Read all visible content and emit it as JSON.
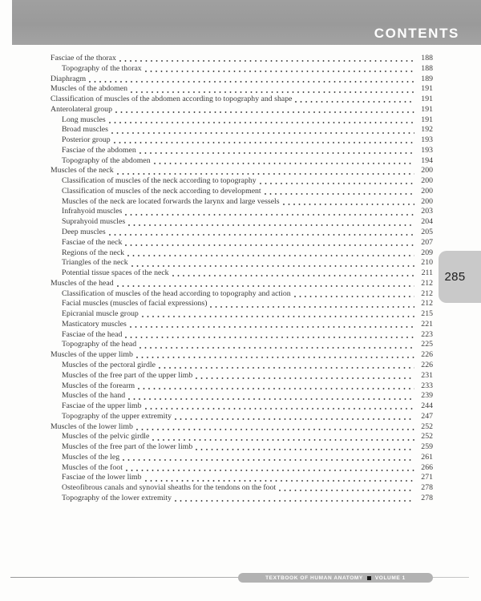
{
  "header": {
    "title": "CONTENTS"
  },
  "page_tab": {
    "number": "285"
  },
  "footer": {
    "book_title": "TEXTBOOK OF HUMAN ANATOMY",
    "separator_icon": "black-square",
    "volume": "VOLUME 1"
  },
  "toc": {
    "entries": [
      {
        "label": "Fasciae of the thorax",
        "page": "188",
        "level": 0
      },
      {
        "label": "Topography of the thorax",
        "page": "188",
        "level": 1
      },
      {
        "label": "Diaphragm",
        "page": "189",
        "level": 0
      },
      {
        "label": "Muscles of the abdomen",
        "page": "191",
        "level": 0
      },
      {
        "label": "Classification of muscles of the abdomen according to topography and shape",
        "page": "191",
        "level": 0
      },
      {
        "label": "Anterolateral group",
        "page": "191",
        "level": 0
      },
      {
        "label": "Long muscles",
        "page": "191",
        "level": 1
      },
      {
        "label": "Broad muscles",
        "page": "192",
        "level": 1
      },
      {
        "label": "Posterior group",
        "page": "193",
        "level": 1
      },
      {
        "label": "Fasciae of the abdomen",
        "page": "193",
        "level": 1
      },
      {
        "label": "Topography of the abdomen",
        "page": "194",
        "level": 1
      },
      {
        "label": "Muscles of the neck",
        "page": "200",
        "level": 0
      },
      {
        "label": "Classification of muscles of the neck according to topography",
        "page": "200",
        "level": 1
      },
      {
        "label": "Classification of muscles of the neck according to development",
        "page": "200",
        "level": 1
      },
      {
        "label": "Muscles of the neck are located forwards the larynx and large vessels",
        "page": "200",
        "level": 1
      },
      {
        "label": "Infrahyoid muscles",
        "page": "203",
        "level": 1
      },
      {
        "label": "Suprahyoid muscles",
        "page": "204",
        "level": 1
      },
      {
        "label": "Deep muscles",
        "page": "205",
        "level": 1
      },
      {
        "label": "Fasciae of the neck",
        "page": "207",
        "level": 1
      },
      {
        "label": "Regions of the neck",
        "page": "209",
        "level": 1
      },
      {
        "label": "Triangles of the neck",
        "page": "210",
        "level": 1
      },
      {
        "label": "Potential tissue spaces of the neck",
        "page": "211",
        "level": 1
      },
      {
        "label": "Muscles of the head",
        "page": "212",
        "level": 0
      },
      {
        "label": "Classification of muscles of the head according to topography and action",
        "page": "212",
        "level": 1
      },
      {
        "label": "Facial muscles (muscles of facial expressions)",
        "page": "212",
        "level": 1
      },
      {
        "label": "Epicranial muscle group",
        "page": "215",
        "level": 1
      },
      {
        "label": "Masticatory muscles",
        "page": "221",
        "level": 1
      },
      {
        "label": "Fasciae of the head",
        "page": "223",
        "level": 1
      },
      {
        "label": "Topography of the head",
        "page": "225",
        "level": 1
      },
      {
        "label": "Muscles of the upper limb",
        "page": "226",
        "level": 0
      },
      {
        "label": "Muscles of the pectoral girdle",
        "page": "226",
        "level": 1
      },
      {
        "label": "Muscles of the free part of the upper limb",
        "page": "231",
        "level": 1
      },
      {
        "label": "Muscles of the forearm",
        "page": "233",
        "level": 1
      },
      {
        "label": "Muscles of the hand",
        "page": "239",
        "level": 1
      },
      {
        "label": "Fasciae of the upper limb",
        "page": "244",
        "level": 1
      },
      {
        "label": "Topography of the upper extremity",
        "page": "247",
        "level": 1
      },
      {
        "label": "Muscles of the lower limb",
        "page": "252",
        "level": 0
      },
      {
        "label": "Muscles of the pelvic girdle",
        "page": "252",
        "level": 1
      },
      {
        "label": "Muscles of the free part of the lower limb",
        "page": "259",
        "level": 1
      },
      {
        "label": "Muscles of the leg",
        "page": "261",
        "level": 1
      },
      {
        "label": "Muscles of the foot",
        "page": "266",
        "level": 1
      },
      {
        "label": "Fasciae of the lower limb",
        "page": "271",
        "level": 1
      },
      {
        "label": "Osteofibrous canals and synovial sheaths for the tendons on the foot",
        "page": "278",
        "level": 1
      },
      {
        "label": "Topography of the lower extremity",
        "page": "278",
        "level": 1
      }
    ]
  }
}
